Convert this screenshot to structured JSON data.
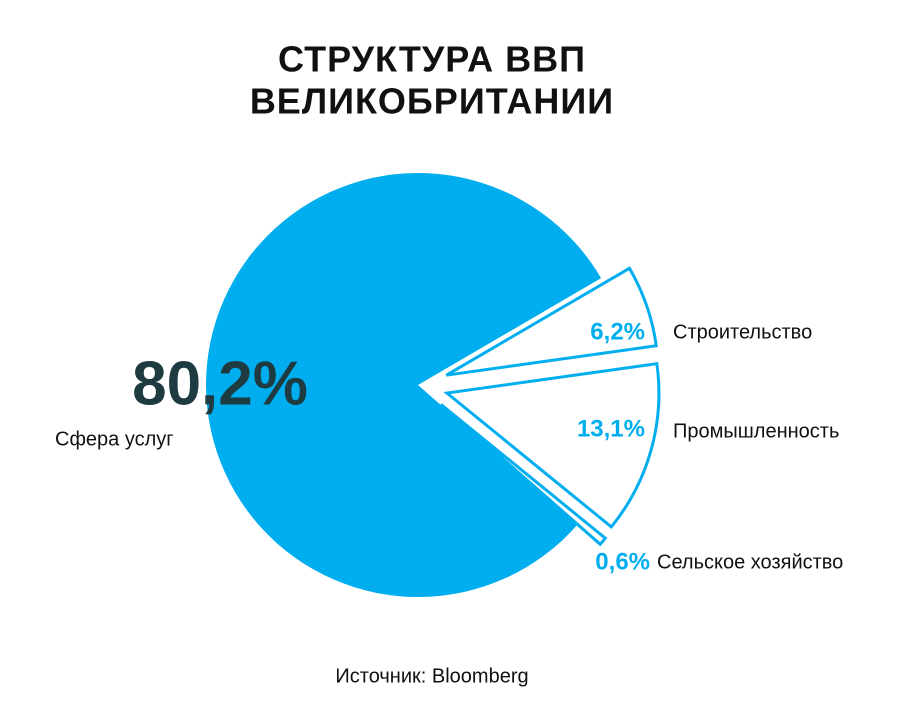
{
  "chart_data": {
    "type": "pie",
    "title": [
      "СТРУКТУРА ВВП",
      "ВЕЛИКОБРИТАНИИ"
    ],
    "categories": [
      "Сфера услуг",
      "Строительство",
      "Промышленность",
      "Сельское хозяйство"
    ],
    "values": [
      80.2,
      6.2,
      13.1,
      0.6
    ],
    "value_labels": [
      "80,2%",
      "6,2%",
      "13,1%",
      "0,6%"
    ],
    "color": "#00aeef",
    "source": "Источник: Bloomberg"
  }
}
